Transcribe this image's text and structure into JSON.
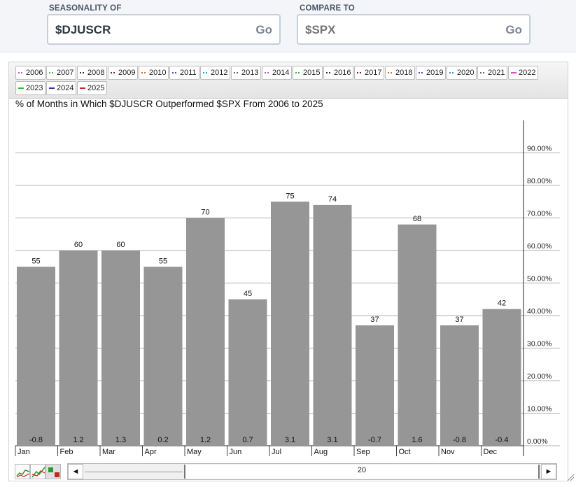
{
  "search": {
    "seasonality_label": "SEASONALITY OF",
    "seasonality_value": "$DJUSCR",
    "compare_label": "COMPARE TO",
    "compare_placeholder": "$SPX",
    "go_label": "Go"
  },
  "legend": {
    "items": [
      {
        "label": "2006",
        "color": "#d050d0"
      },
      {
        "label": "2007",
        "color": "#33bb33"
      },
      {
        "label": "2008",
        "color": "#333333"
      },
      {
        "label": "2009",
        "color": "#8b1c1c"
      },
      {
        "label": "2010",
        "color": "#e06a20"
      },
      {
        "label": "2011",
        "color": "#6633cc"
      },
      {
        "label": "2012",
        "color": "#2a9ad6"
      },
      {
        "label": "2013",
        "color": "#666666"
      },
      {
        "label": "2014",
        "color": "#d050d0"
      },
      {
        "label": "2015",
        "color": "#33bb33"
      },
      {
        "label": "2016",
        "color": "#333333"
      },
      {
        "label": "2017",
        "color": "#8b1c1c"
      },
      {
        "label": "2018",
        "color": "#e06a20"
      },
      {
        "label": "2019",
        "color": "#6633cc"
      },
      {
        "label": "2020",
        "color": "#2a9ad6"
      },
      {
        "label": "2021",
        "color": "#666666"
      },
      {
        "label": "2022",
        "color": "#d050d0"
      },
      {
        "label": "2023",
        "color": "#33bb33"
      },
      {
        "label": "2024",
        "color": "#333399"
      },
      {
        "label": "2025",
        "color": "#cc2222"
      }
    ]
  },
  "chart_data": {
    "type": "bar",
    "title": "% of Months in Which $DJUSCR Outperformed $SPX From 2006 to 2025",
    "categories": [
      "Jan",
      "Feb",
      "Mar",
      "Apr",
      "May",
      "Jun",
      "Jul",
      "Aug",
      "Sep",
      "Oct",
      "Nov",
      "Dec"
    ],
    "values": [
      55,
      60,
      60,
      55,
      70,
      45,
      75,
      74,
      37,
      68,
      37,
      42
    ],
    "avg_returns": [
      "-0.8",
      "1.2",
      "1.3",
      "0.2",
      "1.2",
      "0.7",
      "3.1",
      "3.1",
      "-0.7",
      "1.6",
      "-0.8",
      "-0.4"
    ],
    "ylim": [
      0,
      100
    ],
    "yticks": [
      "0.00%",
      "10.00%",
      "20.00%",
      "30.00%",
      "40.00%",
      "50.00%",
      "60.00%",
      "70.00%",
      "80.00%",
      "90.00%"
    ],
    "bar_color": "#969696",
    "grid": true,
    "y_axis_position": "right"
  },
  "scrollbar": {
    "value": "20",
    "left_arrow": "◄",
    "right_arrow": "►"
  }
}
